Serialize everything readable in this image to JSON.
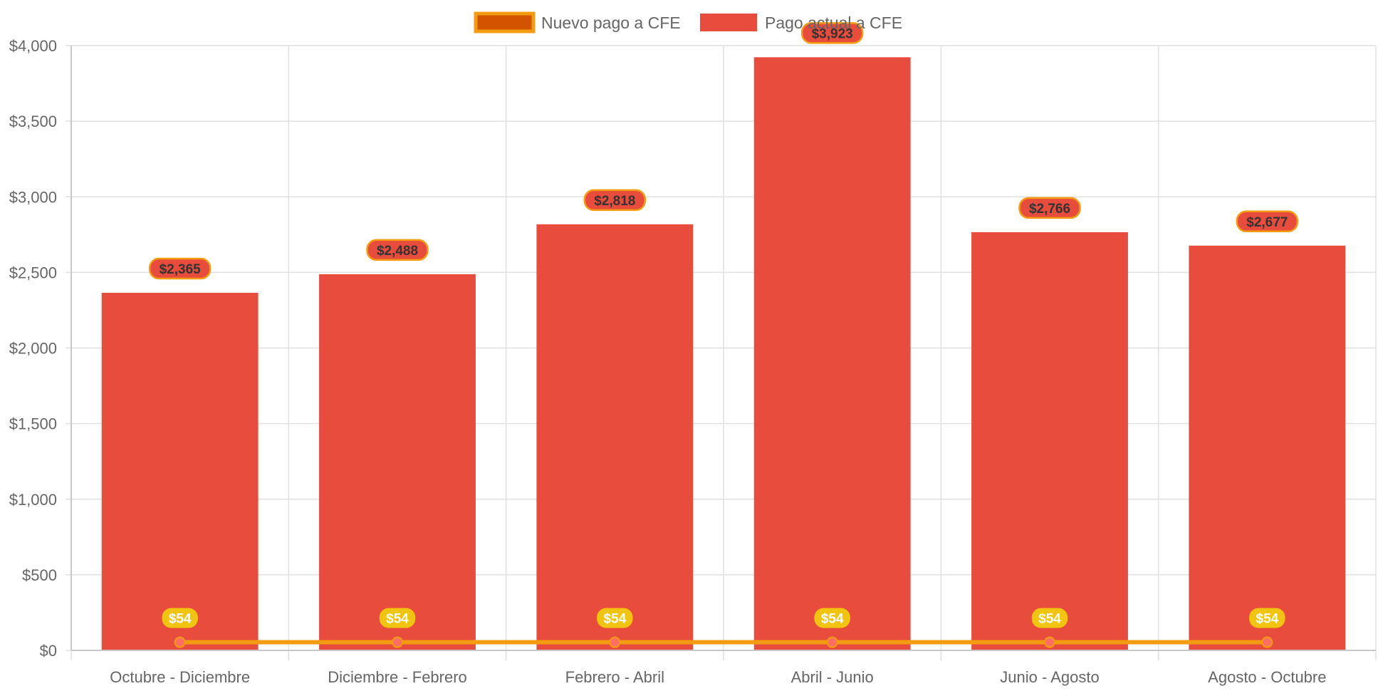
{
  "chart_data": {
    "type": "bar",
    "categories": [
      "Octubre - Diciembre",
      "Diciembre - Febrero",
      "Febrero - Abril",
      "Abril - Junio",
      "Junio - Agosto",
      "Agosto - Octubre"
    ],
    "series": [
      {
        "name": "Nuevo pago a CFE",
        "type": "line",
        "values": [
          54,
          54,
          54,
          54,
          54,
          54
        ],
        "labels": [
          "$54",
          "$54",
          "$54",
          "$54",
          "$54",
          "$54"
        ],
        "color": "#f39c12",
        "legend_fill": "#d35400"
      },
      {
        "name": "Pago actual a CFE",
        "type": "bar",
        "values": [
          2365,
          2488,
          2818,
          3923,
          2766,
          2677
        ],
        "labels": [
          "$2,365",
          "$2,488",
          "$2,818",
          "$3,923",
          "$2,766",
          "$2,677"
        ],
        "color": "#e74c3c"
      }
    ],
    "ylim": [
      0,
      4000
    ],
    "yticks": [
      0,
      500,
      1000,
      1500,
      2000,
      2500,
      3000,
      3500,
      4000
    ],
    "ytick_labels": [
      "$0",
      "$500",
      "$1,000",
      "$1,500",
      "$2,000",
      "$2,500",
      "$3,000",
      "$3,500",
      "$4,000"
    ],
    "xlabel": "",
    "ylabel": "",
    "grid": true,
    "legend_position": "top-center",
    "colors": {
      "grid": "#e0e0e0",
      "text": "#666666",
      "bar_label_bg": "#e74c3c",
      "bar_label_border": "#f39c12",
      "bar_label_text": "#333333",
      "line_label_bg": "#f1c40f",
      "line_label_text": "#ffffff",
      "point_fill": "#ff6f61"
    }
  }
}
